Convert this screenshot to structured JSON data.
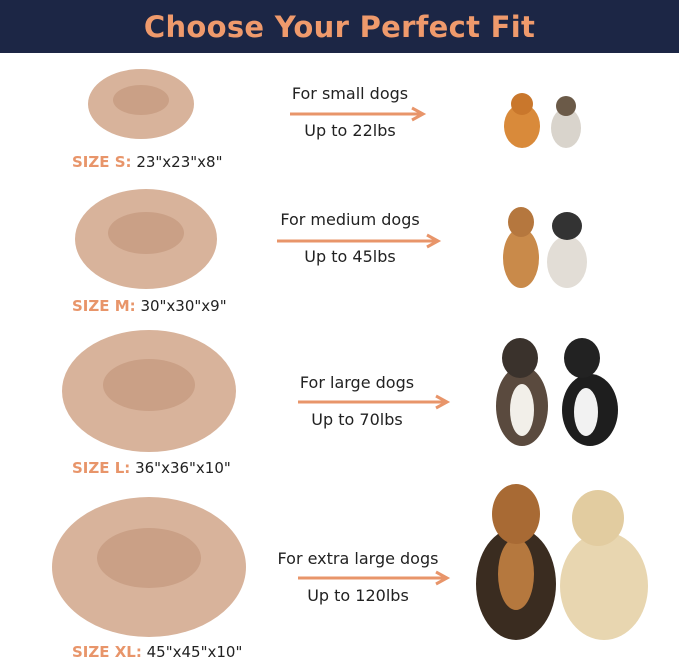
{
  "header": {
    "title": "Choose Your Perfect Fit"
  },
  "colors": {
    "header_bg": "#1c2645",
    "accent": "#e8956a",
    "bed": "#d8b39b"
  },
  "sizes": [
    {
      "key": "SIZE S:",
      "dims": "23\"x23\"x8\"",
      "for": "For small dogs",
      "weight": "Up to 22lbs"
    },
    {
      "key": "SIZE M:",
      "dims": "30\"x30\"x9\"",
      "for": "For medium dogs",
      "weight": "Up to 45lbs"
    },
    {
      "key": "SIZE L:",
      "dims": "36\"x36\"x10\"",
      "for": "For large dogs",
      "weight": "Up to 70lbs"
    },
    {
      "key": "SIZE XL:",
      "dims": "45\"x45\"x10\"",
      "for": "For extra large dogs",
      "weight": "Up to 120lbs"
    }
  ]
}
